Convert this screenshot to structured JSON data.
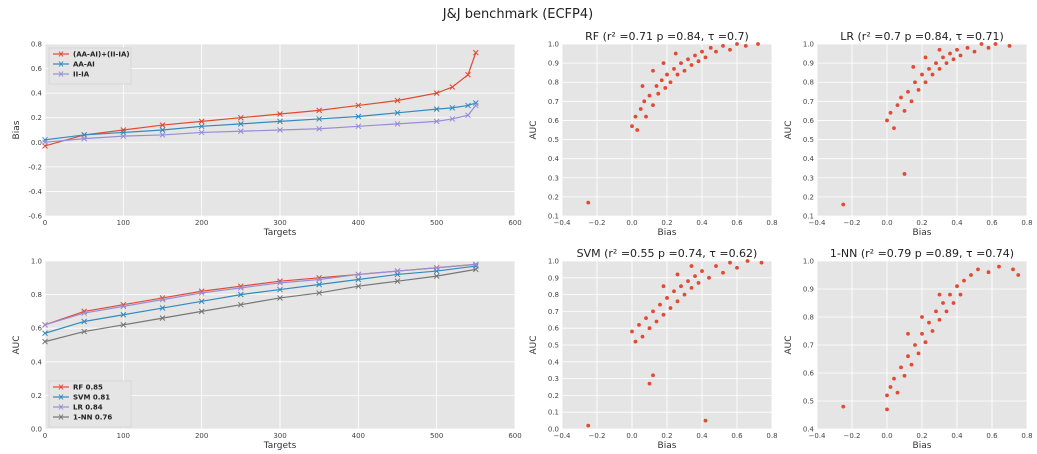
{
  "figure": {
    "title": "J&J benchmark (ECFP4)"
  },
  "colors": {
    "red": "#E24A33",
    "blue": "#348ABD",
    "purple": "#988ED5",
    "gray": "#777777",
    "bg": "#E5E5E5"
  },
  "chart_data": [
    {
      "id": "bias-line",
      "type": "line",
      "title": "",
      "xlabel": "Targets",
      "ylabel": "Bias",
      "xlim": [
        0,
        600
      ],
      "ylim": [
        -0.6,
        0.8
      ],
      "xticks": [
        "0",
        "100",
        "200",
        "300",
        "400",
        "500",
        "600"
      ],
      "yticks": [
        "-0.6",
        "-0.4",
        "-0.2",
        "0.0",
        "0.2",
        "0.4",
        "0.6",
        "0.8"
      ],
      "legend_position": "upper-left",
      "x": [
        0,
        50,
        100,
        150,
        200,
        250,
        300,
        350,
        400,
        450,
        500,
        520,
        540,
        550
      ],
      "series": [
        {
          "name": "(AA-AI)+(II-IA)",
          "color": "red",
          "values": [
            -0.03,
            0.06,
            0.1,
            0.14,
            0.17,
            0.2,
            0.23,
            0.26,
            0.3,
            0.34,
            0.4,
            0.45,
            0.55,
            0.73
          ]
        },
        {
          "name": "AA-AI",
          "color": "blue",
          "values": [
            0.02,
            0.06,
            0.08,
            0.1,
            0.13,
            0.15,
            0.17,
            0.19,
            0.21,
            0.24,
            0.27,
            0.28,
            0.3,
            0.32
          ]
        },
        {
          "name": "II-IA",
          "color": "purple",
          "values": [
            0.0,
            0.03,
            0.05,
            0.06,
            0.08,
            0.09,
            0.1,
            0.11,
            0.13,
            0.15,
            0.17,
            0.19,
            0.22,
            0.3
          ]
        }
      ]
    },
    {
      "id": "auc-line",
      "type": "line",
      "title": "",
      "xlabel": "Targets",
      "ylabel": "AUC",
      "xlim": [
        0,
        600
      ],
      "ylim": [
        0.0,
        1.0
      ],
      "xticks": [
        "0",
        "100",
        "200",
        "300",
        "400",
        "500",
        "600"
      ],
      "yticks": [
        "0.0",
        "0.2",
        "0.4",
        "0.6",
        "0.8",
        "1.0"
      ],
      "legend_position": "lower-left",
      "x": [
        0,
        50,
        100,
        150,
        200,
        250,
        300,
        350,
        400,
        450,
        500,
        550
      ],
      "series": [
        {
          "name": "RF 0.85",
          "color": "red",
          "values": [
            0.62,
            0.7,
            0.74,
            0.78,
            0.82,
            0.85,
            0.88,
            0.9,
            0.92,
            0.94,
            0.96,
            0.98
          ]
        },
        {
          "name": "SVM 0.81",
          "color": "blue",
          "values": [
            0.57,
            0.64,
            0.68,
            0.72,
            0.76,
            0.8,
            0.83,
            0.86,
            0.89,
            0.92,
            0.94,
            0.97
          ]
        },
        {
          "name": "LR 0.84",
          "color": "purple",
          "values": [
            0.62,
            0.69,
            0.73,
            0.77,
            0.81,
            0.84,
            0.87,
            0.89,
            0.92,
            0.94,
            0.96,
            0.98
          ]
        },
        {
          "name": "1-NN 0.76",
          "color": "gray",
          "values": [
            0.52,
            0.58,
            0.62,
            0.66,
            0.7,
            0.74,
            0.78,
            0.81,
            0.85,
            0.88,
            0.91,
            0.95
          ]
        }
      ]
    },
    {
      "id": "rf-scatter",
      "type": "scatter",
      "title": "RF (r² =0.71 p =0.84, τ =0.7)",
      "xlabel": "Bias",
      "ylabel": "AUC",
      "xlim": [
        -0.4,
        0.8
      ],
      "ylim": [
        0.1,
        1.0
      ],
      "xticks": [
        "−0.4",
        "−0.2",
        "0.0",
        "0.2",
        "0.4",
        "0.6",
        "0.8"
      ],
      "yticks": [
        "0.1",
        "0.2",
        "0.3",
        "0.4",
        "0.5",
        "0.6",
        "0.7",
        "0.8",
        "0.9",
        "1.0"
      ],
      "color": "red",
      "points": [
        [
          -0.25,
          0.17
        ],
        [
          0.0,
          0.57
        ],
        [
          0.02,
          0.62
        ],
        [
          0.03,
          0.55
        ],
        [
          0.05,
          0.66
        ],
        [
          0.07,
          0.7
        ],
        [
          0.08,
          0.62
        ],
        [
          0.1,
          0.73
        ],
        [
          0.12,
          0.68
        ],
        [
          0.14,
          0.78
        ],
        [
          0.15,
          0.74
        ],
        [
          0.17,
          0.81
        ],
        [
          0.19,
          0.77
        ],
        [
          0.2,
          0.84
        ],
        [
          0.22,
          0.8
        ],
        [
          0.24,
          0.87
        ],
        [
          0.26,
          0.84
        ],
        [
          0.28,
          0.9
        ],
        [
          0.3,
          0.86
        ],
        [
          0.32,
          0.92
        ],
        [
          0.34,
          0.89
        ],
        [
          0.36,
          0.94
        ],
        [
          0.38,
          0.91
        ],
        [
          0.4,
          0.96
        ],
        [
          0.42,
          0.93
        ],
        [
          0.45,
          0.98
        ],
        [
          0.48,
          0.96
        ],
        [
          0.52,
          0.99
        ],
        [
          0.56,
          0.97
        ],
        [
          0.6,
          1.0
        ],
        [
          0.65,
          0.99
        ],
        [
          0.72,
          1.0
        ],
        [
          0.12,
          0.86
        ],
        [
          0.18,
          0.9
        ],
        [
          0.25,
          0.95
        ],
        [
          0.06,
          0.78
        ]
      ]
    },
    {
      "id": "lr-scatter",
      "type": "scatter",
      "title": "LR (r² =0.7 p =0.84, τ =0.71)",
      "xlabel": "Bias",
      "ylabel": "AUC",
      "xlim": [
        -0.4,
        0.8
      ],
      "ylim": [
        0.1,
        1.0
      ],
      "xticks": [
        "−0.4",
        "−0.2",
        "0.0",
        "0.2",
        "0.4",
        "0.6",
        "0.8"
      ],
      "yticks": [
        "0.1",
        "0.2",
        "0.3",
        "0.4",
        "0.5",
        "0.6",
        "0.7",
        "0.8",
        "0.9",
        "1.0"
      ],
      "color": "red",
      "points": [
        [
          -0.25,
          0.16
        ],
        [
          0.1,
          0.32
        ],
        [
          0.0,
          0.6
        ],
        [
          0.02,
          0.64
        ],
        [
          0.04,
          0.56
        ],
        [
          0.06,
          0.68
        ],
        [
          0.08,
          0.72
        ],
        [
          0.1,
          0.65
        ],
        [
          0.12,
          0.75
        ],
        [
          0.14,
          0.7
        ],
        [
          0.16,
          0.8
        ],
        [
          0.18,
          0.76
        ],
        [
          0.2,
          0.84
        ],
        [
          0.22,
          0.8
        ],
        [
          0.24,
          0.87
        ],
        [
          0.26,
          0.84
        ],
        [
          0.28,
          0.9
        ],
        [
          0.3,
          0.87
        ],
        [
          0.32,
          0.93
        ],
        [
          0.34,
          0.9
        ],
        [
          0.36,
          0.95
        ],
        [
          0.38,
          0.92
        ],
        [
          0.4,
          0.97
        ],
        [
          0.42,
          0.94
        ],
        [
          0.46,
          0.98
        ],
        [
          0.5,
          0.96
        ],
        [
          0.54,
          1.0
        ],
        [
          0.58,
          0.98
        ],
        [
          0.62,
          1.0
        ],
        [
          0.7,
          0.99
        ],
        [
          0.15,
          0.88
        ],
        [
          0.22,
          0.93
        ],
        [
          0.3,
          0.97
        ]
      ]
    },
    {
      "id": "svm-scatter",
      "type": "scatter",
      "title": "SVM (r² =0.55 p =0.74, τ =0.62)",
      "xlabel": "Bias",
      "ylabel": "AUC",
      "xlim": [
        -0.4,
        0.8
      ],
      "ylim": [
        0.0,
        1.0
      ],
      "xticks": [
        "−0.4",
        "−0.2",
        "0.0",
        "0.2",
        "0.4",
        "0.6",
        "0.8"
      ],
      "yticks": [
        "0.0",
        "0.1",
        "0.2",
        "0.3",
        "0.4",
        "0.5",
        "0.6",
        "0.7",
        "0.8",
        "0.9",
        "1.0"
      ],
      "color": "red",
      "points": [
        [
          -0.25,
          0.02
        ],
        [
          0.42,
          0.05
        ],
        [
          0.1,
          0.27
        ],
        [
          0.12,
          0.32
        ],
        [
          0.0,
          0.58
        ],
        [
          0.02,
          0.52
        ],
        [
          0.04,
          0.62
        ],
        [
          0.06,
          0.55
        ],
        [
          0.08,
          0.66
        ],
        [
          0.1,
          0.6
        ],
        [
          0.12,
          0.7
        ],
        [
          0.14,
          0.64
        ],
        [
          0.16,
          0.74
        ],
        [
          0.18,
          0.68
        ],
        [
          0.2,
          0.78
        ],
        [
          0.22,
          0.72
        ],
        [
          0.24,
          0.82
        ],
        [
          0.26,
          0.76
        ],
        [
          0.28,
          0.85
        ],
        [
          0.3,
          0.8
        ],
        [
          0.32,
          0.88
        ],
        [
          0.34,
          0.84
        ],
        [
          0.36,
          0.91
        ],
        [
          0.38,
          0.87
        ],
        [
          0.4,
          0.94
        ],
        [
          0.44,
          0.9
        ],
        [
          0.48,
          0.97
        ],
        [
          0.52,
          0.93
        ],
        [
          0.56,
          0.99
        ],
        [
          0.6,
          0.96
        ],
        [
          0.66,
          1.0
        ],
        [
          0.74,
          0.99
        ],
        [
          0.18,
          0.85
        ],
        [
          0.26,
          0.92
        ],
        [
          0.34,
          0.97
        ]
      ]
    },
    {
      "id": "nn-scatter",
      "type": "scatter",
      "title": "1-NN (r² =0.79 p =0.89, τ =0.74)",
      "xlabel": "Bias",
      "ylabel": "AUC",
      "xlim": [
        -0.4,
        0.8
      ],
      "ylim": [
        0.4,
        1.0
      ],
      "xticks": [
        "−0.4",
        "−0.2",
        "0.0",
        "0.2",
        "0.4",
        "0.6",
        "0.8"
      ],
      "yticks": [
        "0.4",
        "0.5",
        "0.6",
        "0.7",
        "0.8",
        "0.9",
        "1.0"
      ],
      "color": "red",
      "points": [
        [
          -0.25,
          0.48
        ],
        [
          0.0,
          0.47
        ],
        [
          0.0,
          0.52
        ],
        [
          0.02,
          0.55
        ],
        [
          0.04,
          0.58
        ],
        [
          0.06,
          0.53
        ],
        [
          0.08,
          0.62
        ],
        [
          0.1,
          0.59
        ],
        [
          0.12,
          0.66
        ],
        [
          0.14,
          0.63
        ],
        [
          0.16,
          0.7
        ],
        [
          0.18,
          0.67
        ],
        [
          0.2,
          0.74
        ],
        [
          0.22,
          0.71
        ],
        [
          0.24,
          0.78
        ],
        [
          0.26,
          0.75
        ],
        [
          0.28,
          0.82
        ],
        [
          0.3,
          0.79
        ],
        [
          0.32,
          0.85
        ],
        [
          0.34,
          0.82
        ],
        [
          0.36,
          0.88
        ],
        [
          0.38,
          0.85
        ],
        [
          0.4,
          0.91
        ],
        [
          0.42,
          0.88
        ],
        [
          0.44,
          0.93
        ],
        [
          0.48,
          0.95
        ],
        [
          0.52,
          0.97
        ],
        [
          0.58,
          0.96
        ],
        [
          0.64,
          0.98
        ],
        [
          0.72,
          0.97
        ],
        [
          0.75,
          0.95
        ],
        [
          0.12,
          0.74
        ],
        [
          0.2,
          0.8
        ],
        [
          0.3,
          0.88
        ]
      ]
    }
  ]
}
